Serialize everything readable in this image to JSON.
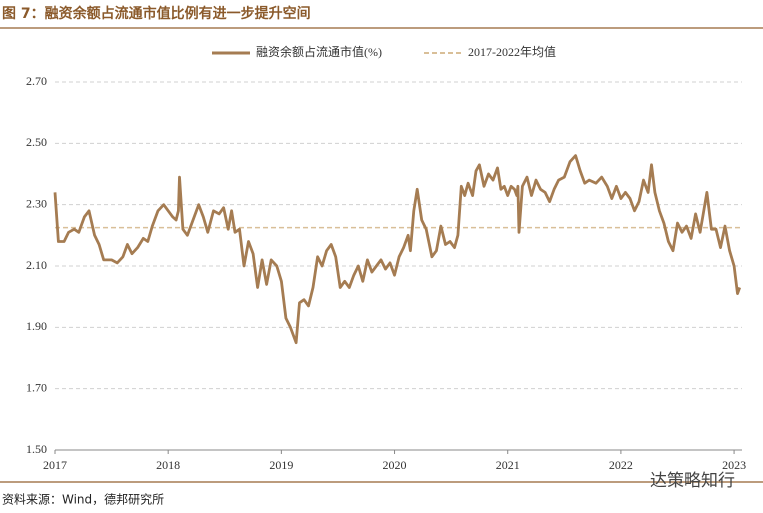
{
  "chart_data": {
    "type": "line",
    "title": "图 7：融资余额占流通市值比例有进一步提升空间",
    "source": "资料来源：Wind，德邦研究所",
    "watermark": "达策略知行",
    "x": [
      2017.0,
      2017.03,
      2017.08,
      2017.12,
      2017.17,
      2017.21,
      2017.26,
      2017.3,
      2017.35,
      2017.39,
      2017.43,
      2017.5,
      2017.55,
      2017.6,
      2017.64,
      2017.68,
      2017.73,
      2017.78,
      2017.82,
      2017.86,
      2017.91,
      2017.96,
      2018.0,
      2018.04,
      2018.07,
      2018.09,
      2018.1,
      2018.13,
      2018.17,
      2018.21,
      2018.27,
      2018.31,
      2018.35,
      2018.4,
      2018.45,
      2018.49,
      2018.53,
      2018.56,
      2018.59,
      2018.63,
      2018.67,
      2018.71,
      2018.75,
      2018.79,
      2018.83,
      2018.87,
      2018.91,
      2018.96,
      2019.0,
      2019.04,
      2019.08,
      2019.13,
      2019.16,
      2019.2,
      2019.24,
      2019.28,
      2019.32,
      2019.36,
      2019.4,
      2019.44,
      2019.48,
      2019.52,
      2019.56,
      2019.6,
      2019.64,
      2019.68,
      2019.72,
      2019.76,
      2019.8,
      2019.84,
      2019.88,
      2019.92,
      2019.96,
      2020.0,
      2020.04,
      2020.08,
      2020.12,
      2020.14,
      2020.17,
      2020.2,
      2020.24,
      2020.28,
      2020.33,
      2020.37,
      2020.41,
      2020.45,
      2020.49,
      2020.53,
      2020.56,
      2020.59,
      2020.62,
      2020.65,
      2020.69,
      2020.72,
      2020.75,
      2020.79,
      2020.83,
      2020.87,
      2020.91,
      2020.94,
      2020.97,
      2021.0,
      2021.03,
      2021.06,
      2021.08,
      2021.09,
      2021.1,
      2021.13,
      2021.17,
      2021.21,
      2021.25,
      2021.29,
      2021.33,
      2021.37,
      2021.41,
      2021.45,
      2021.5,
      2021.55,
      2021.6,
      2021.64,
      2021.68,
      2021.72,
      2021.78,
      2021.83,
      2021.88,
      2021.92,
      2021.96,
      2022.0,
      2022.04,
      2022.08,
      2022.12,
      2022.16,
      2022.2,
      2022.24,
      2022.27,
      2022.3,
      2022.34,
      2022.38,
      2022.42,
      2022.46,
      2022.5,
      2022.54,
      2022.58,
      2022.62,
      2022.66,
      2022.7,
      2022.76,
      2022.8,
      2022.84,
      2022.88,
      2022.92,
      2022.96,
      2023.0,
      2023.03,
      2023.05
    ],
    "series": [
      {
        "name": "融资余额占流通市值(%)",
        "color": "#a57c52",
        "values": [
          2.34,
          2.18,
          2.18,
          2.21,
          2.22,
          2.21,
          2.26,
          2.28,
          2.2,
          2.17,
          2.12,
          2.12,
          2.11,
          2.13,
          2.17,
          2.14,
          2.16,
          2.19,
          2.18,
          2.23,
          2.28,
          2.3,
          2.28,
          2.26,
          2.25,
          2.28,
          2.39,
          2.22,
          2.2,
          2.24,
          2.3,
          2.26,
          2.21,
          2.28,
          2.27,
          2.29,
          2.22,
          2.28,
          2.21,
          2.22,
          2.1,
          2.18,
          2.14,
          2.03,
          2.12,
          2.04,
          2.12,
          2.1,
          2.05,
          1.93,
          1.9,
          1.85,
          1.98,
          1.99,
          1.97,
          2.03,
          2.13,
          2.1,
          2.15,
          2.17,
          2.13,
          2.03,
          2.05,
          2.03,
          2.07,
          2.1,
          2.05,
          2.12,
          2.08,
          2.1,
          2.12,
          2.09,
          2.11,
          2.07,
          2.13,
          2.16,
          2.2,
          2.15,
          2.28,
          2.35,
          2.25,
          2.22,
          2.13,
          2.15,
          2.23,
          2.17,
          2.18,
          2.16,
          2.2,
          2.36,
          2.33,
          2.37,
          2.33,
          2.41,
          2.43,
          2.36,
          2.4,
          2.38,
          2.42,
          2.35,
          2.36,
          2.33,
          2.36,
          2.35,
          2.33,
          2.36,
          2.21,
          2.36,
          2.39,
          2.33,
          2.38,
          2.35,
          2.34,
          2.31,
          2.35,
          2.38,
          2.39,
          2.44,
          2.46,
          2.41,
          2.37,
          2.38,
          2.37,
          2.39,
          2.36,
          2.32,
          2.36,
          2.32,
          2.34,
          2.32,
          2.28,
          2.31,
          2.38,
          2.34,
          2.43,
          2.34,
          2.28,
          2.24,
          2.18,
          2.15,
          2.24,
          2.21,
          2.23,
          2.19,
          2.27,
          2.21,
          2.34,
          2.22,
          2.22,
          2.16,
          2.23,
          2.15,
          2.1,
          2.01,
          2.03
        ]
      }
    ],
    "reference_line": {
      "name": "2017-2022年均值",
      "value": 2.225,
      "color": "#d9bf98"
    },
    "xlim": [
      2017,
      2023.07
    ],
    "xticks": [
      2017,
      2018,
      2019,
      2020,
      2021,
      2022,
      2023
    ],
    "ylim": [
      1.5,
      2.7
    ],
    "yticks": [
      {
        "value": 1.5,
        "label": "1.50"
      },
      {
        "value": 1.7,
        "label": "1.70"
      },
      {
        "value": 1.9,
        "label": "1.90"
      },
      {
        "value": 2.1,
        "label": "2.10"
      },
      {
        "value": 2.3,
        "label": "2.30"
      },
      {
        "value": 2.5,
        "label": "2.50"
      },
      {
        "value": 2.7,
        "label": "2.70"
      }
    ],
    "grid": true
  }
}
